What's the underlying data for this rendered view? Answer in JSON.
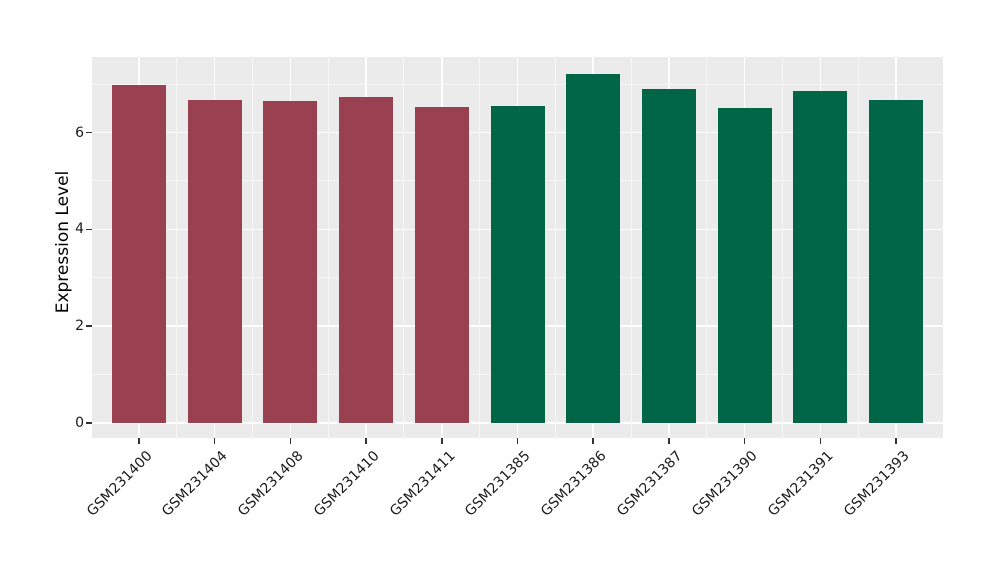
{
  "chart_data": {
    "type": "bar",
    "title": "",
    "xlabel": "",
    "ylabel": "Expression Level",
    "categories": [
      "GSM231400",
      "GSM231404",
      "GSM231408",
      "GSM231410",
      "GSM231411",
      "GSM231385",
      "GSM231386",
      "GSM231387",
      "GSM231390",
      "GSM231391",
      "GSM231393"
    ],
    "values": [
      6.98,
      6.67,
      6.65,
      6.74,
      6.53,
      6.54,
      7.21,
      6.89,
      6.51,
      6.85,
      6.67
    ],
    "groups": [
      "group-1",
      "group-1",
      "group-1",
      "group-1",
      "group-1",
      "group-2",
      "group-2",
      "group-2",
      "group-2",
      "group-2",
      "group-2"
    ],
    "group_colors": {
      "group-1": "#9A4151",
      "group-2": "#006646"
    },
    "yticks": [
      0,
      2,
      4,
      6
    ],
    "yticks_minor": [
      1,
      3,
      5,
      7
    ],
    "ylim": [
      -0.31,
      7.56
    ],
    "legend": "none",
    "grid": "major white, minor faint white, gray panel",
    "panel_bg": "#EBEBEB",
    "grid_major_color": "#FFFFFF",
    "grid_minor_color": "rgba(255,255,255,0.62)",
    "tick_color": "#333333",
    "axis_text_color": "#1A1A1A"
  }
}
